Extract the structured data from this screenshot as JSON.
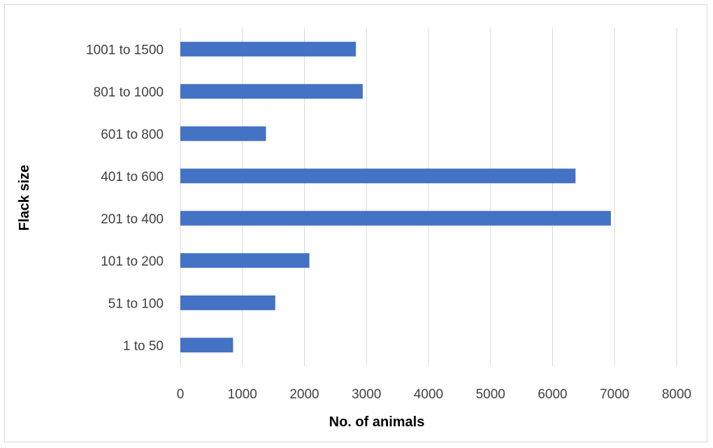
{
  "chart_data": {
    "type": "bar",
    "orientation": "horizontal",
    "categories": [
      "1 to 50",
      "51 to 100",
      "101 to 200",
      "201 to 400",
      "401 to 600",
      "601 to 800",
      "801 to 1000",
      "1001 to 1500"
    ],
    "values": [
      850,
      1530,
      2080,
      6940,
      6370,
      1380,
      2940,
      2830
    ],
    "xlabel": "No. of animals",
    "ylabel": "Flack size",
    "xlim": [
      0,
      8000
    ],
    "xticks": [
      "0",
      "1000",
      "2000",
      "3000",
      "4000",
      "5000",
      "6000",
      "7000",
      "8000"
    ],
    "grid": "vertical",
    "bar_color": "#4472C4",
    "grid_color": "#d9d9d9"
  }
}
